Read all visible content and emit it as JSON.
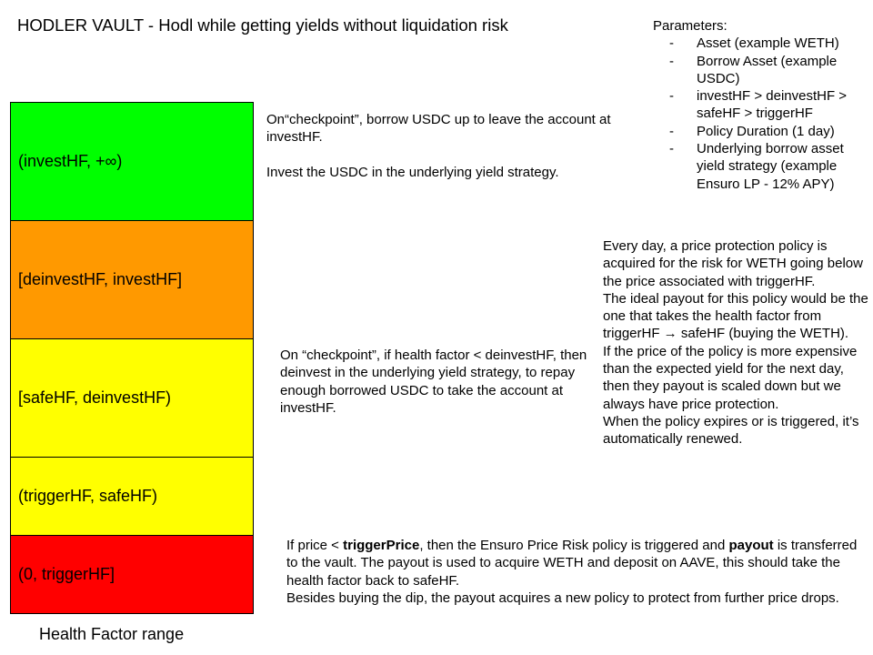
{
  "title": "HODLER VAULT - Hodl while getting yields without liquidation risk",
  "parameters": {
    "heading": "Parameters:",
    "items": [
      "Asset (example WETH)",
      "Borrow Asset (example USDC)",
      "investHF > deinvestHF > safeHF > triggerHF",
      "Policy Duration (1 day)",
      "Underlying borrow asset yield strategy (example Ensuro LP - 12% APY)"
    ]
  },
  "bands": [
    {
      "label": "(investHF, +∞)",
      "color": "#00ff00"
    },
    {
      "label": "[deinvestHF, investHF]",
      "color": "#ff9900"
    },
    {
      "label": "[safeHF, deinvestHF)",
      "color": "#ffff00"
    },
    {
      "label": "(triggerHF, safeHF)",
      "color": "#ffff00"
    },
    {
      "label": "(0, triggerHF]",
      "color": "#ff0000"
    }
  ],
  "range_label": "Health Factor range",
  "notes": {
    "invest": {
      "line1": "On“checkpoint”, borrow USDC up to leave the account at investHF.",
      "line2": "Invest the USDC in the underlying yield strategy."
    },
    "deinvest": "On “checkpoint”, if health factor < deinvestHF, then deinvest in the underlying yield strategy, to repay enough borrowed USDC to take the account at investHF.",
    "policy": [
      "Every day, a price protection policy is acquired for the risk for WETH going below the price associated with triggerHF.",
      "The ideal payout for this policy would be the one that takes the health factor from triggerHF → safeHF (buying the WETH).",
      "If the price of the policy is more expensive than the expected yield for the next day, then they payout is scaled down but we always have price protection.",
      "When the policy expires or is triggered, it’s automatically renewed."
    ],
    "trigger": {
      "p1_a": "If price < ",
      "p1_b": "triggerPrice",
      "p1_c": ", then the Ensuro Price Risk policy is triggered and ",
      "p1_d": "payout",
      "p1_e": " is transferred to the vault. The payout is used to acquire WETH and deposit on AAVE, this should take the health factor back to safeHF.",
      "p2": "Besides buying the dip, the payout acquires a new policy to protect from further price drops."
    }
  }
}
